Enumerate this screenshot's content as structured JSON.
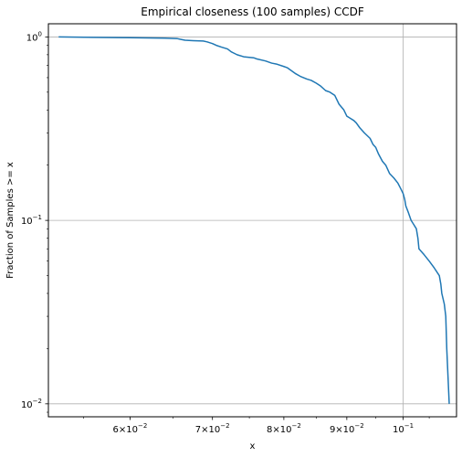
{
  "chart_data": {
    "type": "line",
    "title": "Empirical closeness (100 samples) CCDF",
    "xlabel": "x",
    "ylabel": "Fraction of Samples >= x",
    "xscale": "log",
    "yscale": "log",
    "xlim": [
      0.0515,
      0.1105
    ],
    "ylim": [
      0.0085,
      1.18
    ],
    "grid": true,
    "line_color": "#1f77b4",
    "x_ticks": [
      {
        "value": 0.06,
        "base": "6",
        "exp": "−2"
      },
      {
        "value": 0.07,
        "base": "7",
        "exp": "−2"
      },
      {
        "value": 0.08,
        "base": "8",
        "exp": "−2"
      },
      {
        "value": 0.09,
        "base": "9",
        "exp": "−2"
      },
      {
        "value": 0.1,
        "base": "",
        "exp": "−1"
      }
    ],
    "y_ticks": [
      {
        "value": 1,
        "exp": "0"
      },
      {
        "value": 0.1,
        "exp": "−1"
      },
      {
        "value": 0.01,
        "exp": "−2"
      }
    ],
    "series": [
      {
        "x": [
          0.0525,
          0.056,
          0.06,
          0.064,
          0.0655,
          0.066,
          0.0665,
          0.0675,
          0.0688,
          0.0693,
          0.07,
          0.0705,
          0.0712,
          0.072,
          0.0725,
          0.0733,
          0.0742,
          0.0756,
          0.076,
          0.0773,
          0.0782,
          0.079,
          0.08,
          0.0805,
          0.081,
          0.0818,
          0.0825,
          0.0835,
          0.0842,
          0.085,
          0.0857,
          0.0865,
          0.0872,
          0.088,
          0.0887,
          0.0895,
          0.09,
          0.0906,
          0.0912,
          0.0916,
          0.0922,
          0.093,
          0.094,
          0.0945,
          0.095,
          0.0955,
          0.0962,
          0.0968,
          0.0975,
          0.0983,
          0.099,
          0.0995,
          0.1,
          0.1003,
          0.1005,
          0.101,
          0.1015,
          0.102,
          0.1025,
          0.1028,
          0.103,
          0.104,
          0.105,
          0.106,
          0.107,
          0.1073,
          0.1075,
          0.108,
          0.1083,
          0.1085,
          0.109
        ],
        "y": [
          1.0,
          0.995,
          0.99,
          0.985,
          0.98,
          0.97,
          0.96,
          0.955,
          0.95,
          0.94,
          0.92,
          0.9,
          0.88,
          0.86,
          0.83,
          0.8,
          0.78,
          0.77,
          0.76,
          0.74,
          0.72,
          0.71,
          0.69,
          0.68,
          0.66,
          0.63,
          0.61,
          0.59,
          0.58,
          0.56,
          0.54,
          0.51,
          0.5,
          0.48,
          0.43,
          0.4,
          0.37,
          0.36,
          0.35,
          0.34,
          0.32,
          0.3,
          0.28,
          0.26,
          0.25,
          0.23,
          0.21,
          0.2,
          0.18,
          0.17,
          0.16,
          0.15,
          0.14,
          0.13,
          0.12,
          0.11,
          0.1,
          0.095,
          0.09,
          0.08,
          0.07,
          0.065,
          0.06,
          0.055,
          0.05,
          0.045,
          0.04,
          0.035,
          0.03,
          0.02,
          0.01
        ]
      }
    ]
  }
}
